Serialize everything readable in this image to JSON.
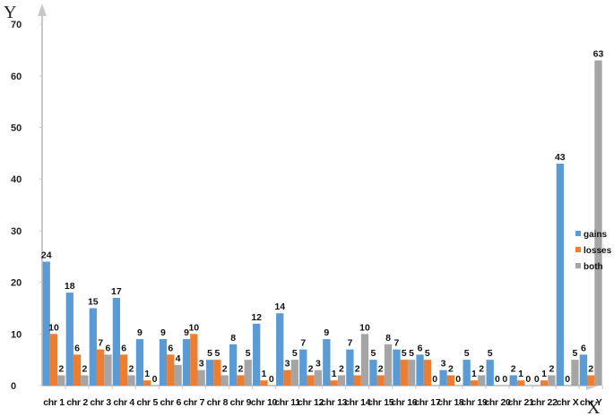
{
  "chart_data": {
    "type": "bar",
    "title": "",
    "xlabel": "X",
    "ylabel": "Y",
    "ylim": [
      0,
      70
    ],
    "yticks": [
      0,
      10,
      20,
      30,
      40,
      50,
      60,
      70
    ],
    "grid": false,
    "legend_position": "right",
    "categories": [
      "chr 1",
      "chr 2",
      "chr 3",
      "chr 4",
      "chr 5",
      "chr 6",
      "chr 7",
      "chr 8",
      "chr 9",
      "chr 10",
      "chr 11",
      "chr 12",
      "chr 13",
      "chr 14",
      "chr 15",
      "chr 16",
      "chr 17",
      "chr 18",
      "chr 19",
      "chr 20",
      "chr 21",
      "chr 22",
      "chr X",
      "chr Y"
    ],
    "series": [
      {
        "name": "gains",
        "color": "#5B9BD5",
        "values": [
          24,
          18,
          15,
          17,
          9,
          9,
          9,
          5,
          8,
          12,
          14,
          7,
          9,
          7,
          5,
          7,
          6,
          3,
          5,
          5,
          2,
          0,
          43,
          6
        ]
      },
      {
        "name": "losses",
        "color": "#ED7D31",
        "values": [
          10,
          6,
          7,
          6,
          1,
          6,
          10,
          5,
          2,
          1,
          3,
          2,
          1,
          2,
          2,
          5,
          5,
          2,
          1,
          0,
          1,
          1,
          0,
          2
        ]
      },
      {
        "name": "both",
        "color": "#A5A5A5",
        "values": [
          2,
          2,
          6,
          2,
          0,
          4,
          3,
          2,
          5,
          0,
          5,
          3,
          2,
          10,
          8,
          5,
          0,
          0,
          2,
          0,
          0,
          2,
          5,
          63
        ]
      }
    ]
  },
  "axes": {
    "y_letter": "Y",
    "x_letter": "X",
    "axis_color": "#C8C8C8"
  },
  "legend": {
    "items": [
      {
        "label": "gains",
        "color": "#5B9BD5"
      },
      {
        "label": "losses",
        "color": "#ED7D31"
      },
      {
        "label": "both",
        "color": "#A5A5A5"
      }
    ]
  }
}
